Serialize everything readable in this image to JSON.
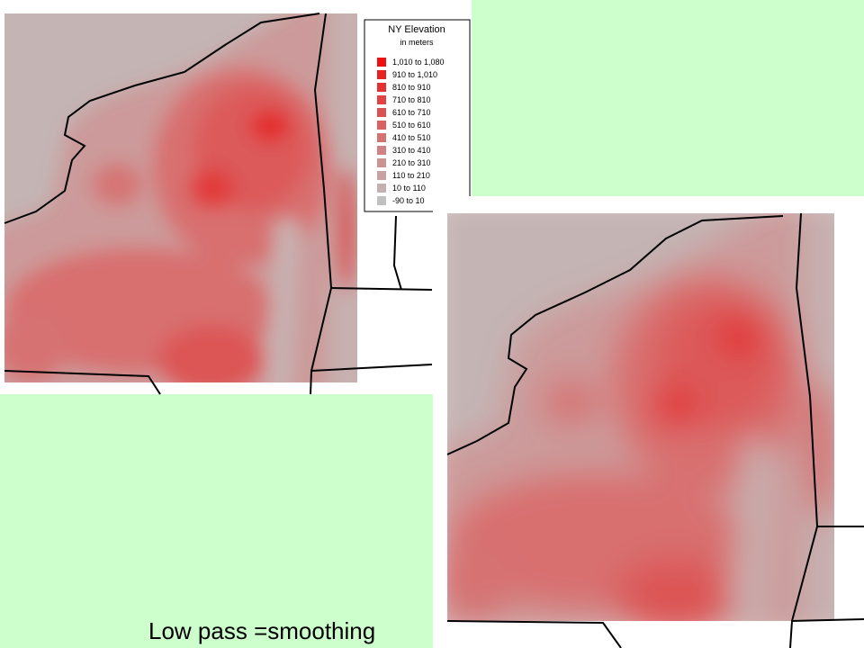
{
  "legend": {
    "title": "NY Elevation",
    "subtitle": "in meters",
    "items": [
      {
        "label": "1,010 to 1,080",
        "color": "#ee1010"
      },
      {
        "label": "910 to 1,010",
        "color": "#e92020"
      },
      {
        "label": "810 to 910",
        "color": "#e53030"
      },
      {
        "label": "710 to 810",
        "color": "#e04242"
      },
      {
        "label": "610 to 710",
        "color": "#dc5252"
      },
      {
        "label": "510 to 610",
        "color": "#d86262"
      },
      {
        "label": "410 to 510",
        "color": "#d47272"
      },
      {
        "label": "310 to 410",
        "color": "#d08282"
      },
      {
        "label": "210 to 310",
        "color": "#cc9292"
      },
      {
        "label": "110 to 210",
        "color": "#c8a2a2"
      },
      {
        "label": "10 to 110",
        "color": "#c4b0b0"
      },
      {
        "label": "-90 to 10",
        "color": "#c0c0c0"
      }
    ]
  },
  "caption": "Low pass =smoothing"
}
